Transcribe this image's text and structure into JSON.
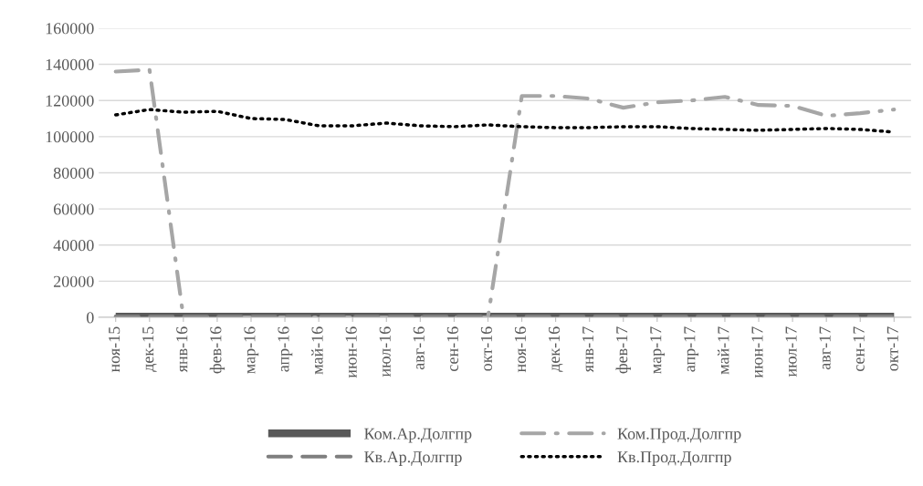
{
  "chart_data": {
    "type": "line",
    "categories": [
      "ноя-15",
      "дек-15",
      "янв-16",
      "фев-16",
      "мар-16",
      "апр-16",
      "май-16",
      "июн-16",
      "июл-16",
      "авг-16",
      "сен-16",
      "окт-16",
      "ноя-16",
      "дек-16",
      "янв-17",
      "фев-17",
      "мар-17",
      "апр-17",
      "май-17",
      "июн-17",
      "июл-17",
      "авг-17",
      "сен-17",
      "окт-17"
    ],
    "series": [
      {
        "name": "Ком.Ар.Долгпр",
        "color": "#595959",
        "line_style": "solid",
        "values": [
          500,
          500,
          500,
          500,
          500,
          500,
          500,
          500,
          500,
          500,
          500,
          500,
          500,
          500,
          500,
          500,
          500,
          500,
          500,
          500,
          500,
          500,
          500,
          500
        ]
      },
      {
        "name": "Ком.Прод.Долгпр",
        "color": "#a6a6a6",
        "line_style": "dashdot",
        "values": [
          136000,
          137000,
          0,
          0,
          0,
          0,
          0,
          0,
          0,
          0,
          0,
          0,
          122500,
          122500,
          121000,
          116000,
          119000,
          120000,
          122000,
          117500,
          117000,
          111500,
          113000,
          115000
        ]
      },
      {
        "name": "Кв.Ар.Долгпр",
        "color": "#7f7f7f",
        "line_style": "dashed",
        "values": [
          500,
          500,
          500,
          500,
          500,
          500,
          500,
          500,
          500,
          500,
          500,
          500,
          500,
          500,
          500,
          500,
          500,
          500,
          500,
          500,
          500,
          500,
          500,
          500
        ]
      },
      {
        "name": "Кв.Прод.Долгпр",
        "color": "#000000",
        "line_style": "dotted",
        "values": [
          112000,
          115000,
          113500,
          114000,
          110000,
          109500,
          106000,
          106000,
          107500,
          106000,
          105500,
          106500,
          105500,
          105000,
          105000,
          105500,
          105500,
          104500,
          104000,
          103500,
          104000,
          104500,
          104000,
          102500
        ]
      }
    ],
    "ylim": [
      0,
      160000
    ],
    "yticks": [
      0,
      20000,
      40000,
      60000,
      80000,
      100000,
      120000,
      140000,
      160000
    ],
    "grid": "y",
    "legend": "bottom",
    "marker": "none"
  }
}
